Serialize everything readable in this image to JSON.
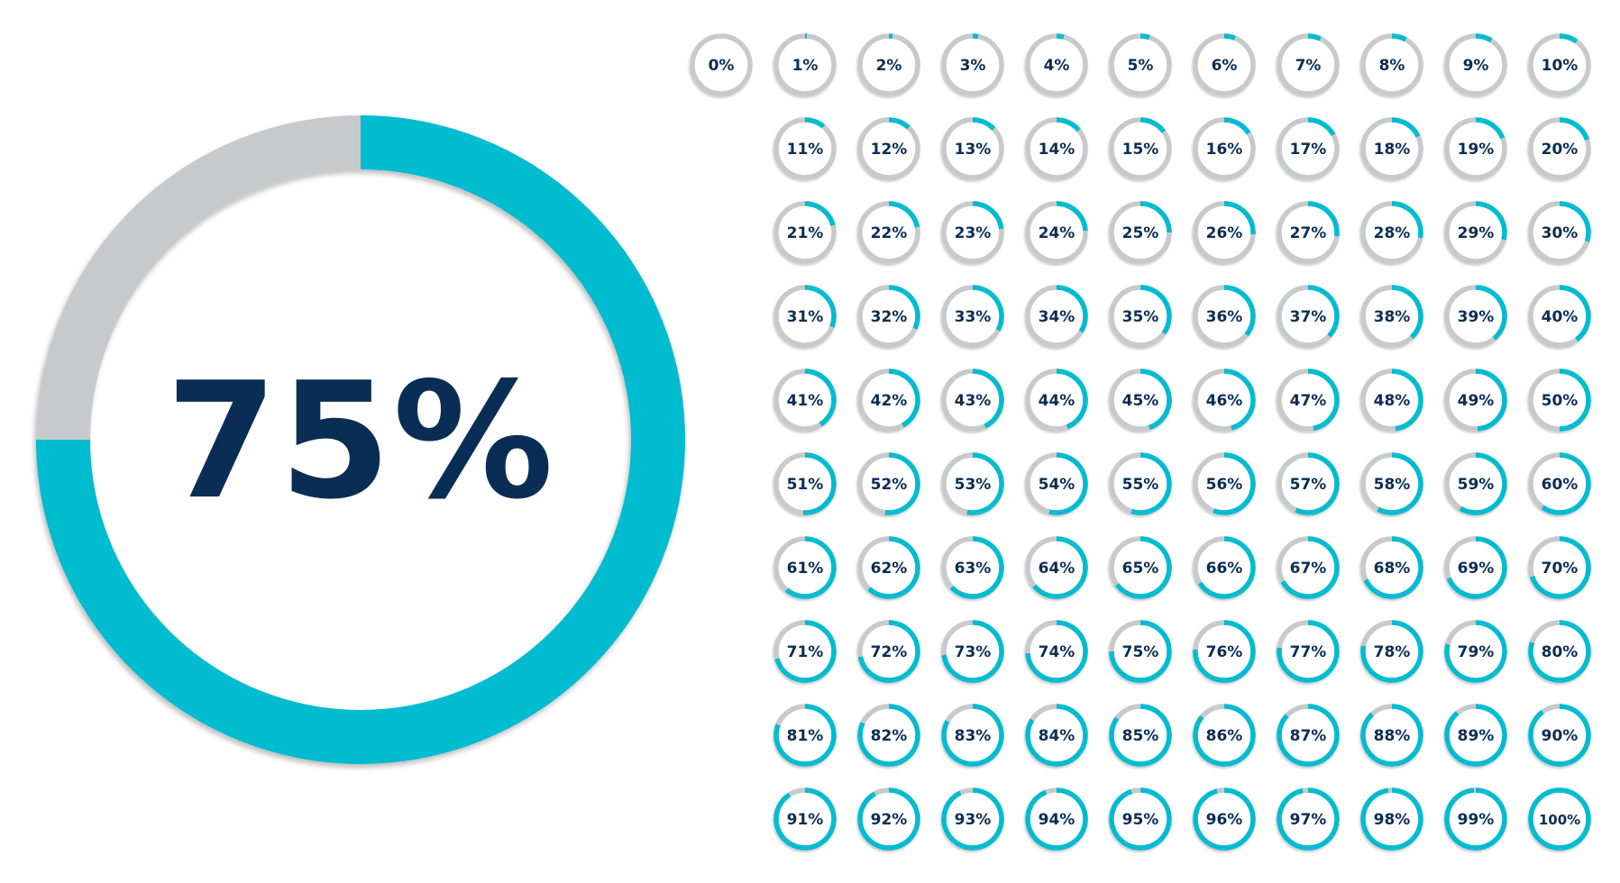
{
  "colors": {
    "accent": "#00bcd0",
    "track": "#c8c9cc",
    "text": "#0a2d55",
    "background": "#ffffff"
  },
  "main_indicator": {
    "value": 75,
    "label": "75%"
  },
  "indicators": [
    {
      "value": 0,
      "label": "0%"
    },
    {
      "value": 1,
      "label": "1%"
    },
    {
      "value": 2,
      "label": "2%"
    },
    {
      "value": 3,
      "label": "3%"
    },
    {
      "value": 4,
      "label": "4%"
    },
    {
      "value": 5,
      "label": "5%"
    },
    {
      "value": 6,
      "label": "6%"
    },
    {
      "value": 7,
      "label": "7%"
    },
    {
      "value": 8,
      "label": "8%"
    },
    {
      "value": 9,
      "label": "9%"
    },
    {
      "value": 10,
      "label": "10%"
    },
    {
      "value": 11,
      "label": "11%"
    },
    {
      "value": 12,
      "label": "12%"
    },
    {
      "value": 13,
      "label": "13%"
    },
    {
      "value": 14,
      "label": "14%"
    },
    {
      "value": 15,
      "label": "15%"
    },
    {
      "value": 16,
      "label": "16%"
    },
    {
      "value": 17,
      "label": "17%"
    },
    {
      "value": 18,
      "label": "18%"
    },
    {
      "value": 19,
      "label": "19%"
    },
    {
      "value": 20,
      "label": "20%"
    },
    {
      "value": 21,
      "label": "21%"
    },
    {
      "value": 22,
      "label": "22%"
    },
    {
      "value": 23,
      "label": "23%"
    },
    {
      "value": 24,
      "label": "24%"
    },
    {
      "value": 25,
      "label": "25%"
    },
    {
      "value": 26,
      "label": "26%"
    },
    {
      "value": 27,
      "label": "27%"
    },
    {
      "value": 28,
      "label": "28%"
    },
    {
      "value": 29,
      "label": "29%"
    },
    {
      "value": 30,
      "label": "30%"
    },
    {
      "value": 31,
      "label": "31%"
    },
    {
      "value": 32,
      "label": "32%"
    },
    {
      "value": 33,
      "label": "33%"
    },
    {
      "value": 34,
      "label": "34%"
    },
    {
      "value": 35,
      "label": "35%"
    },
    {
      "value": 36,
      "label": "36%"
    },
    {
      "value": 37,
      "label": "37%"
    },
    {
      "value": 38,
      "label": "38%"
    },
    {
      "value": 39,
      "label": "39%"
    },
    {
      "value": 40,
      "label": "40%"
    },
    {
      "value": 41,
      "label": "41%"
    },
    {
      "value": 42,
      "label": "42%"
    },
    {
      "value": 43,
      "label": "43%"
    },
    {
      "value": 44,
      "label": "44%"
    },
    {
      "value": 45,
      "label": "45%"
    },
    {
      "value": 46,
      "label": "46%"
    },
    {
      "value": 47,
      "label": "47%"
    },
    {
      "value": 48,
      "label": "48%"
    },
    {
      "value": 49,
      "label": "49%"
    },
    {
      "value": 50,
      "label": "50%"
    },
    {
      "value": 51,
      "label": "51%"
    },
    {
      "value": 52,
      "label": "52%"
    },
    {
      "value": 53,
      "label": "53%"
    },
    {
      "value": 54,
      "label": "54%"
    },
    {
      "value": 55,
      "label": "55%"
    },
    {
      "value": 56,
      "label": "56%"
    },
    {
      "value": 57,
      "label": "57%"
    },
    {
      "value": 58,
      "label": "58%"
    },
    {
      "value": 59,
      "label": "59%"
    },
    {
      "value": 60,
      "label": "60%"
    },
    {
      "value": 61,
      "label": "61%"
    },
    {
      "value": 62,
      "label": "62%"
    },
    {
      "value": 63,
      "label": "63%"
    },
    {
      "value": 64,
      "label": "64%"
    },
    {
      "value": 65,
      "label": "65%"
    },
    {
      "value": 66,
      "label": "66%"
    },
    {
      "value": 67,
      "label": "67%"
    },
    {
      "value": 68,
      "label": "68%"
    },
    {
      "value": 69,
      "label": "69%"
    },
    {
      "value": 70,
      "label": "70%"
    },
    {
      "value": 71,
      "label": "71%"
    },
    {
      "value": 72,
      "label": "72%"
    },
    {
      "value": 73,
      "label": "73%"
    },
    {
      "value": 74,
      "label": "74%"
    },
    {
      "value": 75,
      "label": "75%"
    },
    {
      "value": 76,
      "label": "76%"
    },
    {
      "value": 77,
      "label": "77%"
    },
    {
      "value": 78,
      "label": "78%"
    },
    {
      "value": 79,
      "label": "79%"
    },
    {
      "value": 80,
      "label": "80%"
    },
    {
      "value": 81,
      "label": "81%"
    },
    {
      "value": 82,
      "label": "82%"
    },
    {
      "value": 83,
      "label": "83%"
    },
    {
      "value": 84,
      "label": "84%"
    },
    {
      "value": 85,
      "label": "85%"
    },
    {
      "value": 86,
      "label": "86%"
    },
    {
      "value": 87,
      "label": "87%"
    },
    {
      "value": 88,
      "label": "88%"
    },
    {
      "value": 89,
      "label": "89%"
    },
    {
      "value": 90,
      "label": "90%"
    },
    {
      "value": 91,
      "label": "91%"
    },
    {
      "value": 92,
      "label": "92%"
    },
    {
      "value": 93,
      "label": "93%"
    },
    {
      "value": 94,
      "label": "94%"
    },
    {
      "value": 95,
      "label": "95%"
    },
    {
      "value": 96,
      "label": "96%"
    },
    {
      "value": 97,
      "label": "97%"
    },
    {
      "value": 98,
      "label": "98%"
    },
    {
      "value": 99,
      "label": "99%"
    },
    {
      "value": 100,
      "label": "100%"
    }
  ]
}
